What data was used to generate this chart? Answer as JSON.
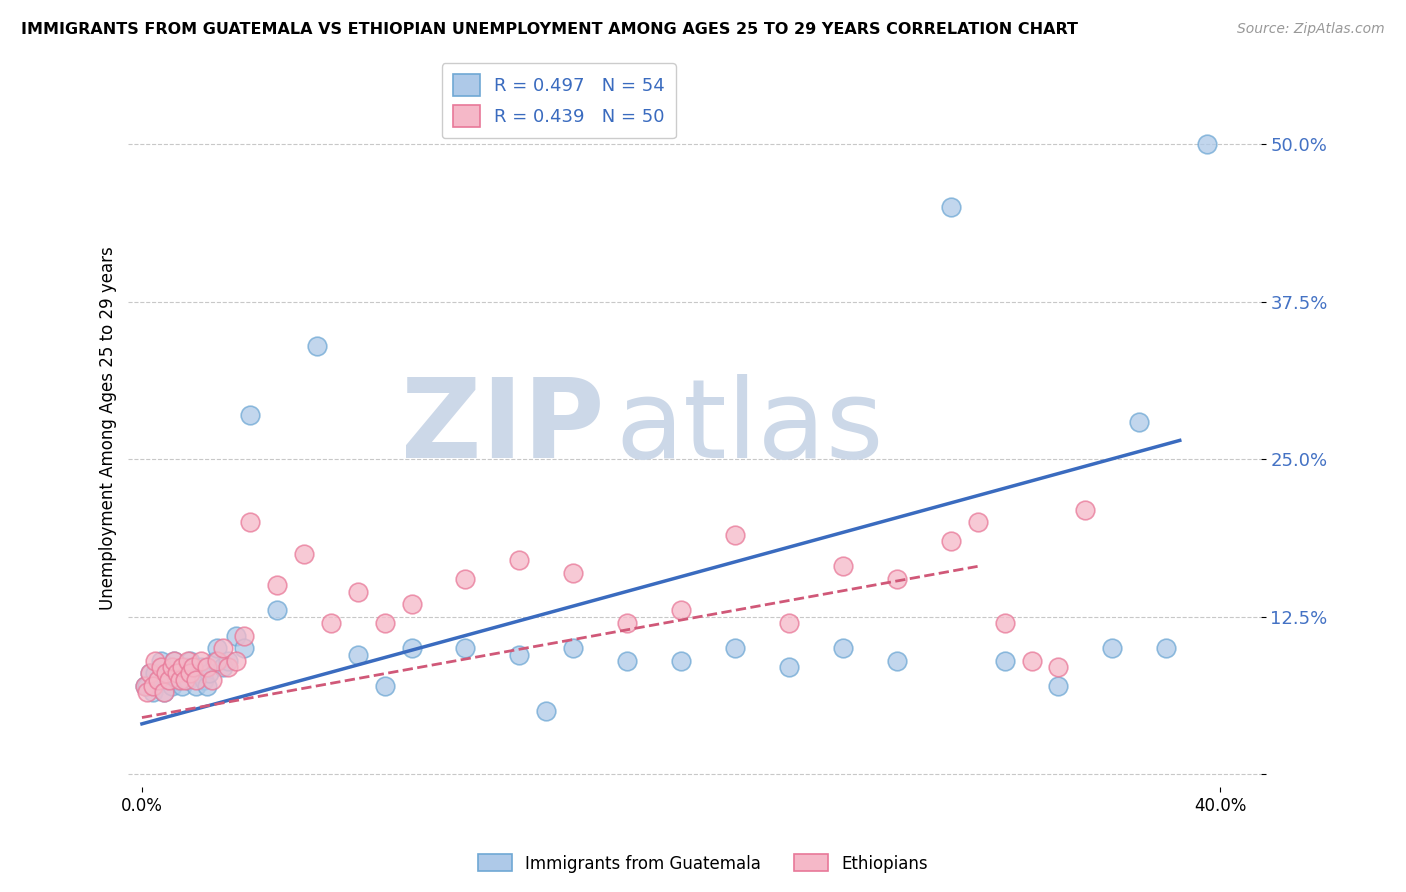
{
  "title": "IMMIGRANTS FROM GUATEMALA VS ETHIOPIAN UNEMPLOYMENT AMONG AGES 25 TO 29 YEARS CORRELATION CHART",
  "source": "Source: ZipAtlas.com",
  "ylabel": "Unemployment Among Ages 25 to 29 years",
  "legend_r1": "R = 0.497",
  "legend_n1": "N = 54",
  "legend_r2": "R = 0.439",
  "legend_n2": "N = 50",
  "blue_scatter_face": "#aec9e8",
  "blue_scatter_edge": "#6fa8d4",
  "pink_scatter_face": "#f5b8c8",
  "pink_scatter_edge": "#e87898",
  "line_blue": "#3a6bbf",
  "line_pink": "#d05878",
  "watermark_color": "#ccd8e8",
  "xlim": [
    0.0,
    0.4
  ],
  "ylim": [
    0.0,
    0.55
  ],
  "ytick_vals": [
    0.0,
    0.125,
    0.25,
    0.375,
    0.5
  ],
  "ytick_labels": [
    "",
    "12.5%",
    "25.0%",
    "37.5%",
    "50.0%"
  ],
  "blue_line_x": [
    0.0,
    0.385
  ],
  "blue_line_y": [
    0.04,
    0.265
  ],
  "pink_line_x": [
    0.0,
    0.31
  ],
  "pink_line_y": [
    0.045,
    0.165
  ],
  "guatemala_x": [
    0.001,
    0.002,
    0.003,
    0.004,
    0.005,
    0.006,
    0.007,
    0.008,
    0.009,
    0.01,
    0.011,
    0.012,
    0.013,
    0.014,
    0.015,
    0.016,
    0.017,
    0.018,
    0.019,
    0.02,
    0.021,
    0.022,
    0.023,
    0.024,
    0.025,
    0.027,
    0.028,
    0.03,
    0.032,
    0.035,
    0.038,
    0.04,
    0.05,
    0.065,
    0.08,
    0.09,
    0.1,
    0.12,
    0.14,
    0.15,
    0.16,
    0.18,
    0.2,
    0.22,
    0.24,
    0.26,
    0.28,
    0.3,
    0.32,
    0.34,
    0.36,
    0.37,
    0.38,
    0.395
  ],
  "guatemala_y": [
    0.07,
    0.07,
    0.08,
    0.065,
    0.08,
    0.075,
    0.09,
    0.065,
    0.075,
    0.08,
    0.07,
    0.09,
    0.075,
    0.08,
    0.07,
    0.085,
    0.075,
    0.09,
    0.08,
    0.07,
    0.08,
    0.085,
    0.075,
    0.07,
    0.08,
    0.09,
    0.1,
    0.085,
    0.09,
    0.11,
    0.1,
    0.285,
    0.13,
    0.34,
    0.095,
    0.07,
    0.1,
    0.1,
    0.095,
    0.05,
    0.1,
    0.09,
    0.09,
    0.1,
    0.085,
    0.1,
    0.09,
    0.45,
    0.09,
    0.07,
    0.1,
    0.28,
    0.1,
    0.5
  ],
  "ethiopian_x": [
    0.001,
    0.002,
    0.003,
    0.004,
    0.005,
    0.006,
    0.007,
    0.008,
    0.009,
    0.01,
    0.011,
    0.012,
    0.013,
    0.014,
    0.015,
    0.016,
    0.017,
    0.018,
    0.019,
    0.02,
    0.022,
    0.024,
    0.026,
    0.028,
    0.03,
    0.032,
    0.035,
    0.038,
    0.04,
    0.05,
    0.06,
    0.07,
    0.08,
    0.09,
    0.1,
    0.12,
    0.14,
    0.16,
    0.18,
    0.2,
    0.22,
    0.24,
    0.26,
    0.28,
    0.3,
    0.31,
    0.32,
    0.33,
    0.34,
    0.35
  ],
  "ethiopian_y": [
    0.07,
    0.065,
    0.08,
    0.07,
    0.09,
    0.075,
    0.085,
    0.065,
    0.08,
    0.075,
    0.085,
    0.09,
    0.08,
    0.075,
    0.085,
    0.075,
    0.09,
    0.08,
    0.085,
    0.075,
    0.09,
    0.085,
    0.075,
    0.09,
    0.1,
    0.085,
    0.09,
    0.11,
    0.2,
    0.15,
    0.175,
    0.12,
    0.145,
    0.12,
    0.135,
    0.155,
    0.17,
    0.16,
    0.12,
    0.13,
    0.19,
    0.12,
    0.165,
    0.155,
    0.185,
    0.2,
    0.12,
    0.09,
    0.085,
    0.21
  ]
}
